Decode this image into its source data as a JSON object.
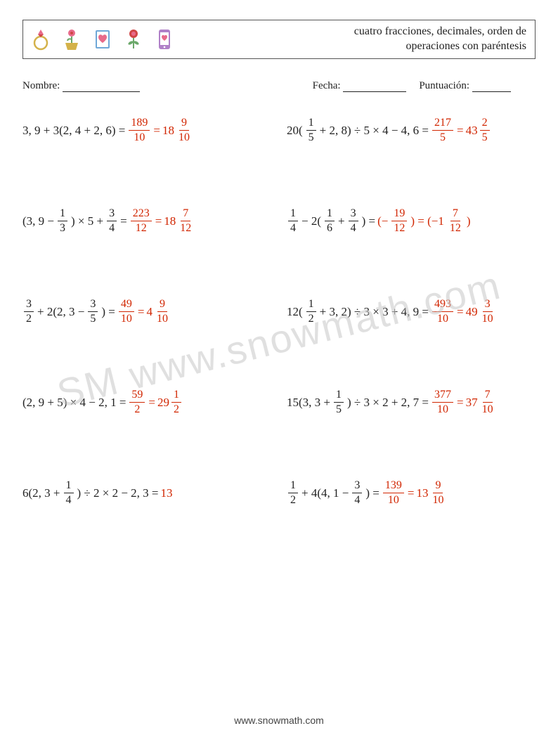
{
  "header": {
    "title_line1": "cuatro fracciones, decimales, orden de",
    "title_line2": "operaciones con paréntesis",
    "icons": [
      "ring-icon",
      "flower-pot-icon",
      "love-book-icon",
      "rose-icon",
      "love-phone-icon"
    ]
  },
  "meta": {
    "name_label": "Nombre:",
    "date_label": "Fecha:",
    "score_label": "Puntuación:"
  },
  "colors": {
    "answer": "#d12500",
    "text": "#222222",
    "icon_pink": "#e86a8a",
    "icon_red": "#d04545",
    "icon_gold": "#d4b24a",
    "icon_green": "#6ba86a",
    "icon_blue": "#6fa8d8",
    "icon_purple": "#b080c8",
    "watermark": "#c8c8c8"
  },
  "problems": [
    {
      "expr": [
        {
          "t": "txt",
          "v": "3, 9 + 3(2, 4 + 2, 6) = "
        },
        {
          "t": "frac",
          "n": "189",
          "d": "10",
          "red": true
        },
        {
          "t": "txt",
          "v": " = ",
          "red": true
        },
        {
          "t": "mixed",
          "w": "18",
          "n": "9",
          "d": "10",
          "red": true
        }
      ]
    },
    {
      "expr": [
        {
          "t": "txt",
          "v": "20("
        },
        {
          "t": "frac",
          "n": "1",
          "d": "5"
        },
        {
          "t": "txt",
          "v": " + 2, 8) ÷ 5 × 4 − 4, 6 = "
        },
        {
          "t": "frac",
          "n": "217",
          "d": "5",
          "red": true
        },
        {
          "t": "txt",
          "v": " = ",
          "red": true
        },
        {
          "t": "mixed",
          "w": "43",
          "n": "2",
          "d": "5",
          "red": true
        }
      ]
    },
    {
      "expr": [
        {
          "t": "txt",
          "v": "(3, 9 − "
        },
        {
          "t": "frac",
          "n": "1",
          "d": "3"
        },
        {
          "t": "txt",
          "v": ") × 5 + "
        },
        {
          "t": "frac",
          "n": "3",
          "d": "4"
        },
        {
          "t": "txt",
          "v": " = "
        },
        {
          "t": "frac",
          "n": "223",
          "d": "12",
          "red": true
        },
        {
          "t": "txt",
          "v": " = ",
          "red": true
        },
        {
          "t": "mixed",
          "w": "18",
          "n": "7",
          "d": "12",
          "red": true
        }
      ]
    },
    {
      "expr": [
        {
          "t": "frac",
          "n": "1",
          "d": "4"
        },
        {
          "t": "txt",
          "v": " − 2("
        },
        {
          "t": "frac",
          "n": "1",
          "d": "6"
        },
        {
          "t": "txt",
          "v": " + "
        },
        {
          "t": "frac",
          "n": "3",
          "d": "4"
        },
        {
          "t": "txt",
          "v": ") = "
        },
        {
          "t": "txt",
          "v": "(−",
          "red": true
        },
        {
          "t": "frac",
          "n": "19",
          "d": "12",
          "red": true
        },
        {
          "t": "txt",
          "v": ") = (−1",
          "red": true
        },
        {
          "t": "frac",
          "n": "7",
          "d": "12",
          "red": true
        },
        {
          "t": "txt",
          "v": ")",
          "red": true
        }
      ]
    },
    {
      "expr": [
        {
          "t": "frac",
          "n": "3",
          "d": "2"
        },
        {
          "t": "txt",
          "v": " + 2(2, 3 − "
        },
        {
          "t": "frac",
          "n": "3",
          "d": "5"
        },
        {
          "t": "txt",
          "v": ") = "
        },
        {
          "t": "frac",
          "n": "49",
          "d": "10",
          "red": true
        },
        {
          "t": "txt",
          "v": " = ",
          "red": true
        },
        {
          "t": "mixed",
          "w": "4",
          "n": "9",
          "d": "10",
          "red": true
        }
      ]
    },
    {
      "expr": [
        {
          "t": "txt",
          "v": "12("
        },
        {
          "t": "frac",
          "n": "1",
          "d": "2"
        },
        {
          "t": "txt",
          "v": " + 3, 2) ÷ 3 × 3 + 4, 9 = "
        },
        {
          "t": "frac",
          "n": "493",
          "d": "10",
          "red": true
        },
        {
          "t": "txt",
          "v": " = ",
          "red": true
        },
        {
          "t": "mixed",
          "w": "49",
          "n": "3",
          "d": "10",
          "red": true
        }
      ]
    },
    {
      "expr": [
        {
          "t": "txt",
          "v": "(2, 9 + 5) × 4 − 2, 1 = "
        },
        {
          "t": "frac",
          "n": "59",
          "d": "2",
          "red": true
        },
        {
          "t": "txt",
          "v": " = ",
          "red": true
        },
        {
          "t": "mixed",
          "w": "29",
          "n": "1",
          "d": "2",
          "red": true
        }
      ]
    },
    {
      "expr": [
        {
          "t": "txt",
          "v": "15(3, 3 + "
        },
        {
          "t": "frac",
          "n": "1",
          "d": "5"
        },
        {
          "t": "txt",
          "v": ") ÷ 3 × 2 + 2, 7 = "
        },
        {
          "t": "frac",
          "n": "377",
          "d": "10",
          "red": true
        },
        {
          "t": "txt",
          "v": " = ",
          "red": true
        },
        {
          "t": "mixed",
          "w": "37",
          "n": "7",
          "d": "10",
          "red": true
        }
      ]
    },
    {
      "expr": [
        {
          "t": "txt",
          "v": "6(2, 3 + "
        },
        {
          "t": "frac",
          "n": "1",
          "d": "4"
        },
        {
          "t": "txt",
          "v": ") ÷ 2 × 2 − 2, 3 = "
        },
        {
          "t": "txt",
          "v": "13",
          "red": true
        }
      ]
    },
    {
      "expr": [
        {
          "t": "frac",
          "n": "1",
          "d": "2"
        },
        {
          "t": "txt",
          "v": " + 4(4, 1 − "
        },
        {
          "t": "frac",
          "n": "3",
          "d": "4"
        },
        {
          "t": "txt",
          "v": ") = "
        },
        {
          "t": "frac",
          "n": "139",
          "d": "10",
          "red": true
        },
        {
          "t": "txt",
          "v": " = ",
          "red": true
        },
        {
          "t": "mixed",
          "w": "13",
          "n": "9",
          "d": "10",
          "red": true
        }
      ]
    }
  ],
  "watermark": "SM   www.snowmath.com",
  "footer": "www.snowmath.com"
}
